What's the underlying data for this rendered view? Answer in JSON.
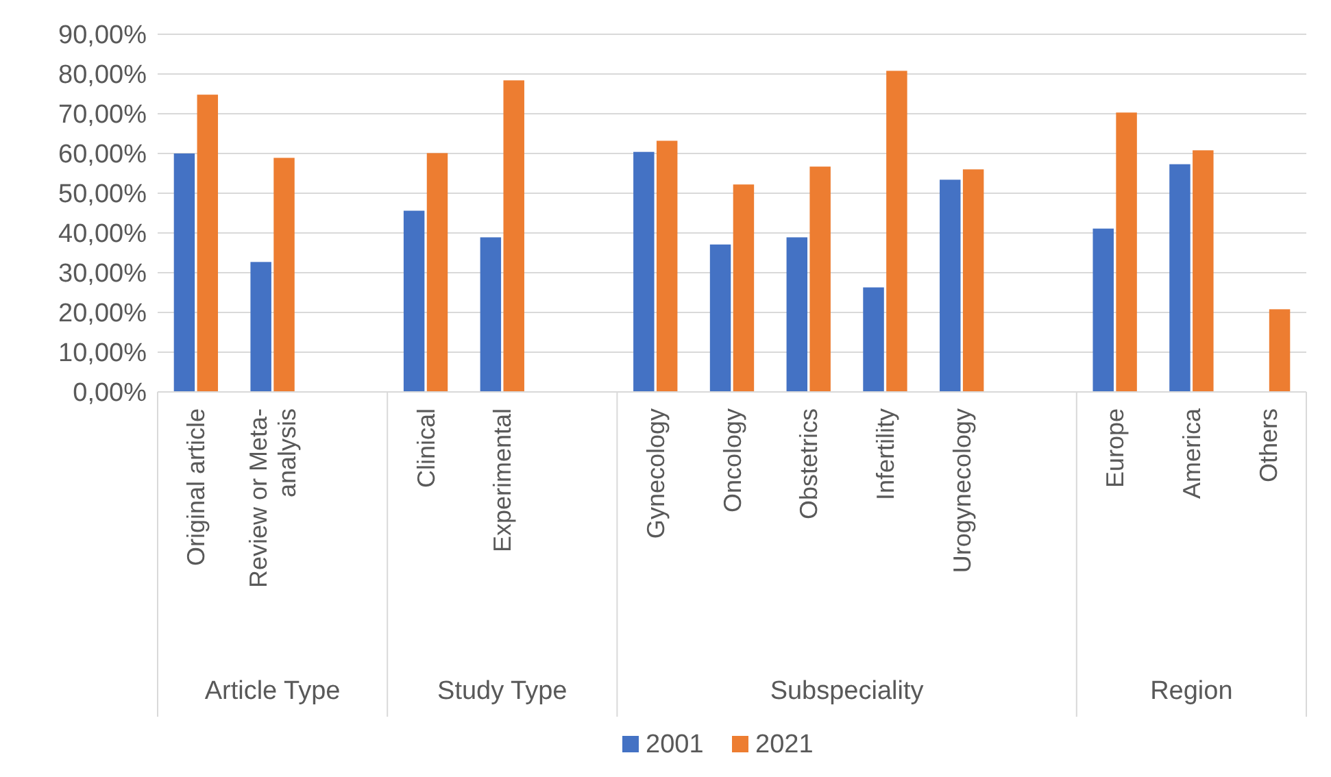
{
  "chart_data": {
    "type": "bar",
    "categories": [
      "Original article",
      "Review or Meta-analysis",
      null,
      "Clinical",
      "Experimental",
      null,
      "Gynecology",
      "Oncology",
      "Obstetrics",
      "Infertility",
      "Urogynecology",
      null,
      "Europe",
      "America",
      "Others"
    ],
    "annotations": [
      "Article Type",
      "Study Type",
      "Subspeciality",
      "Region"
    ],
    "series": [
      {
        "name": "2001",
        "color": "#4472c4",
        "values": [
          60,
          32.7,
          null,
          45.6,
          38.9,
          null,
          60.4,
          37.1,
          38.9,
          26.3,
          53.4,
          null,
          41.1,
          57.3,
          null
        ]
      },
      {
        "name": "2021",
        "color": "#ed7d31",
        "values": [
          74.8,
          58.9,
          null,
          60.1,
          78.4,
          null,
          63.2,
          52.2,
          56.7,
          80.8,
          56,
          null,
          70.3,
          60.8,
          20.8
        ]
      }
    ],
    "ylim": [
      0,
      90
    ],
    "yticks": [
      {
        "value": 0,
        "label": "0,00%"
      },
      {
        "value": 10,
        "label": "10,00%"
      },
      {
        "value": 20,
        "label": "20,00%"
      },
      {
        "value": 30,
        "label": "30,00%"
      },
      {
        "value": 40,
        "label": "40,00%"
      },
      {
        "value": 50,
        "label": "50,00%"
      },
      {
        "value": 60,
        "label": "60,00%"
      },
      {
        "value": 70,
        "label": "70,00%"
      },
      {
        "value": 80,
        "label": "80,00%"
      },
      {
        "value": 90,
        "label": "90,00%"
      }
    ],
    "grid": "y",
    "legend": "bottom"
  }
}
